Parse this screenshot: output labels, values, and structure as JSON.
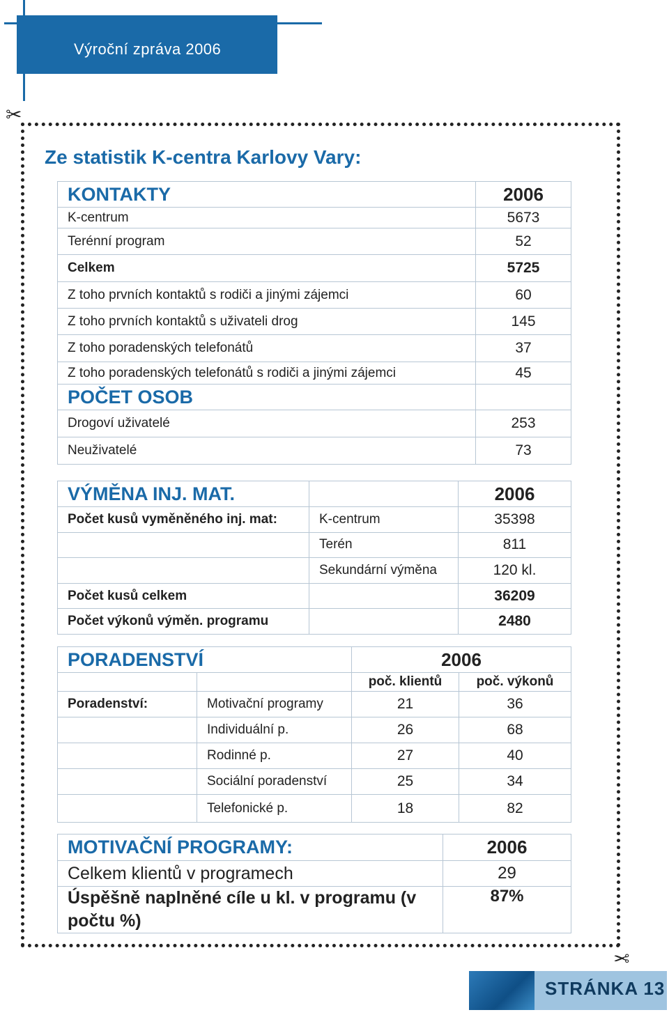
{
  "header": {
    "title": "Výroční zpráva 2006"
  },
  "heading": "Ze statistik K-centra Karlovy Vary:",
  "kontakty": {
    "title": "KONTAKTY",
    "year": 2006,
    "rows": [
      {
        "label": "K-centrum",
        "value": 5673
      },
      {
        "label": "Terénní program",
        "value": 52
      },
      {
        "label": "Celkem",
        "value": 5725,
        "bold": true
      },
      {
        "label": "Z toho prvních kontaktů s rodiči a jinými zájemci",
        "value": 60
      },
      {
        "label": "Z toho prvních kontaktů s uživateli drog",
        "value": 145
      },
      {
        "label": "Z toho poradenských telefonátů",
        "value": 37
      },
      {
        "label": "Z toho poradenských telefonátů s rodiči a jinými zájemci",
        "value": 45
      }
    ],
    "osoby_title": "POČET OSOB",
    "osoby_rows": [
      {
        "label": "Drogoví uživatelé",
        "value": 253
      },
      {
        "label": "Neuživatelé",
        "value": 73
      }
    ]
  },
  "vymena": {
    "title": "VÝMĚNA INJ. MAT.",
    "year": 2006,
    "rows": [
      {
        "label": "Počet kusů vyměněného inj. mat:",
        "sub": "K-centrum",
        "value": 35398
      },
      {
        "sub": "Terén",
        "value": 811
      },
      {
        "sub": "Sekundární výměna",
        "value": "120 kl."
      },
      {
        "label": "Počet kusů celkem",
        "value": 36209
      },
      {
        "label": "Počet výkonů výměn. programu",
        "value": 2480
      }
    ]
  },
  "poradenstvi": {
    "title": "PORADENSTVÍ",
    "year": 2006,
    "col1": "poč. klientů",
    "col2": "poč. výkonů",
    "label": "Poradenství:",
    "rows": [
      {
        "name": "Motivační programy",
        "clients": 21,
        "visits": 36
      },
      {
        "name": "Individuální p.",
        "clients": 26,
        "visits": 68
      },
      {
        "name": "Rodinné p.",
        "clients": 27,
        "visits": 40
      },
      {
        "name": "Sociální poradenství",
        "clients": 25,
        "visits": 34
      },
      {
        "name": "Telefonické p.",
        "clients": 18,
        "visits": 82
      }
    ]
  },
  "motivacni": {
    "title": "MOTIVAČNÍ PROGRAMY:",
    "year": 2006,
    "rows": [
      {
        "label": "Celkem klientů v programech",
        "value": 29
      },
      {
        "label": "Úspěšně naplněné cíle u kl. v programu (v počtu %)",
        "value": "87%"
      }
    ]
  },
  "footer": {
    "page": "STRÁNKA 13"
  }
}
